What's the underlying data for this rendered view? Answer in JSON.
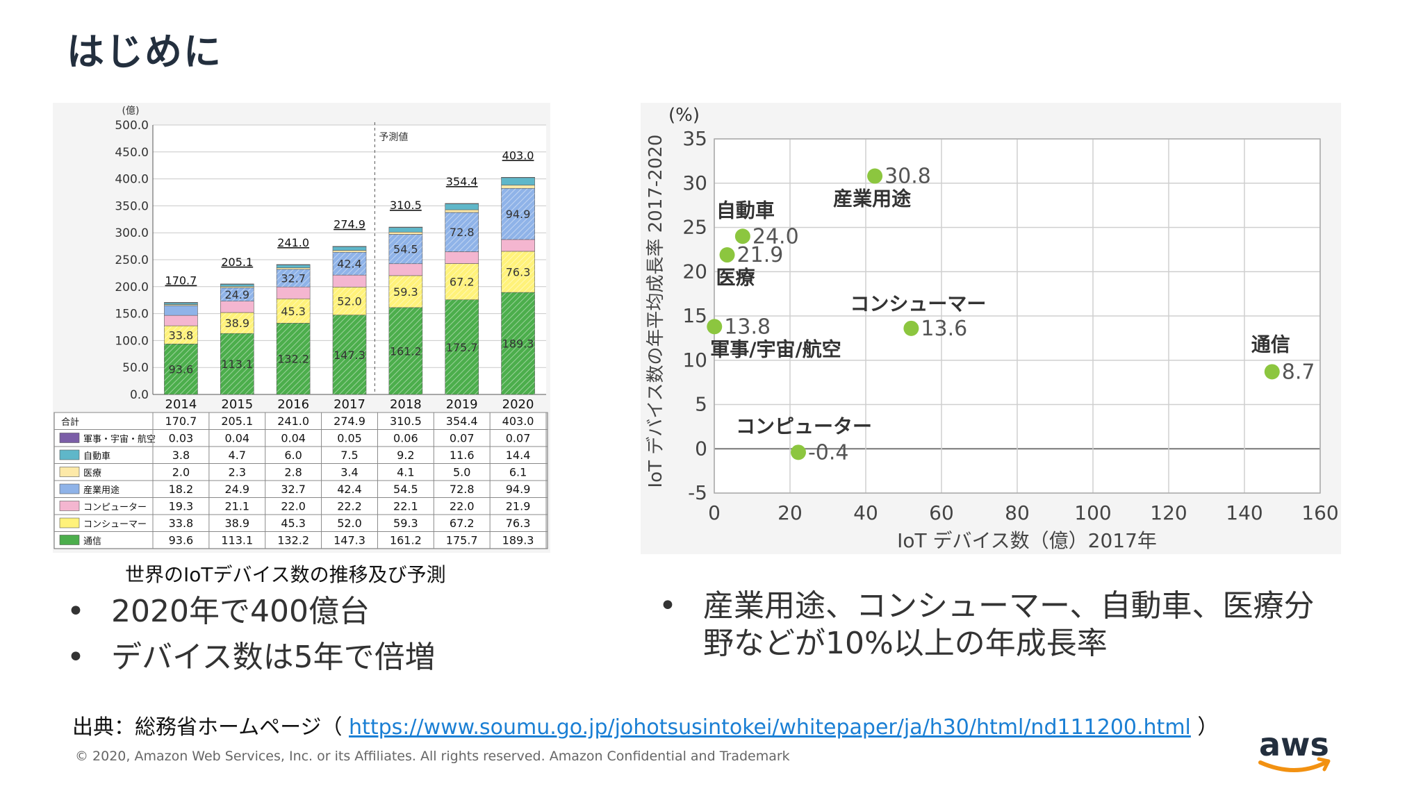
{
  "title": "はじめに",
  "chart_data": [
    {
      "type": "bar",
      "subtype": "stacked",
      "unit_label": "(億)",
      "ylim": [
        0,
        500
      ],
      "yticks": [
        "500.0",
        "450.0",
        "400.0",
        "350.0",
        "300.0",
        "250.0",
        "200.0",
        "150.0",
        "100.0",
        "50.0",
        "0.0"
      ],
      "categories": [
        "2014",
        "2015",
        "2016",
        "2017",
        "2018",
        "2019",
        "2020"
      ],
      "forecast_label": "予測値",
      "totals": [
        170.7,
        205.1,
        241.0,
        274.9,
        310.5,
        354.4,
        403.0
      ],
      "totals_text": [
        "170.7",
        "205.1",
        "241.0",
        "274.9",
        "310.5",
        "354.4",
        "403.0"
      ],
      "total_row_label": "合計",
      "series": [
        {
          "name": "通信",
          "values": [
            93.6,
            113.1,
            132.2,
            147.3,
            161.2,
            175.7,
            189.3
          ],
          "text": [
            "93.6",
            "113.1",
            "132.2",
            "147.3",
            "161.2",
            "175.7",
            "189.3"
          ],
          "color": "#4cae4c"
        },
        {
          "name": "コンシューマー",
          "values": [
            33.8,
            38.9,
            45.3,
            52.0,
            59.3,
            67.2,
            76.3
          ],
          "text": [
            "33.8",
            "38.9",
            "45.3",
            "52.0",
            "59.3",
            "67.2",
            "76.3"
          ],
          "color": "#fff27a"
        },
        {
          "name": "コンピューター",
          "values": [
            19.3,
            21.1,
            22.0,
            22.2,
            22.1,
            22.0,
            21.9
          ],
          "text": [
            "19.3",
            "21.1",
            "22.0",
            "22.2",
            "22.1",
            "22.0",
            "21.9"
          ],
          "color": "#f4b6d0"
        },
        {
          "name": "産業用途",
          "values": [
            18.2,
            24.9,
            32.7,
            42.4,
            54.5,
            72.8,
            94.9
          ],
          "text": [
            "18.2",
            "24.9",
            "32.7",
            "42.4",
            "54.5",
            "72.8",
            "94.9"
          ],
          "color": "#8fb3e8"
        },
        {
          "name": "医療",
          "values": [
            2.0,
            2.3,
            2.8,
            3.4,
            4.1,
            5.0,
            6.1
          ],
          "text": [
            "2.0",
            "2.3",
            "2.8",
            "3.4",
            "4.1",
            "5.0",
            "6.1"
          ],
          "color": "#fde9a8"
        },
        {
          "name": "自動車",
          "values": [
            3.8,
            4.7,
            6.0,
            7.5,
            9.2,
            11.6,
            14.4
          ],
          "text": [
            "3.8",
            "4.7",
            "6.0",
            "7.5",
            "9.2",
            "11.6",
            "14.4"
          ],
          "color": "#5fb7c9"
        },
        {
          "name": "軍事・宇宙・航空",
          "values": [
            0.03,
            0.04,
            0.04,
            0.05,
            0.06,
            0.07,
            0.07
          ],
          "text": [
            "0.03",
            "0.04",
            "0.04",
            "0.05",
            "0.06",
            "0.07",
            "0.07"
          ],
          "color": "#7b5ea7"
        }
      ]
    },
    {
      "type": "scatter",
      "y_unit": "(%)",
      "ylabel": "IoT デバイス数の年平均成長率 2017-2020",
      "xlabel": "IoT デバイス数（億）2017年",
      "xlim": [
        0,
        160
      ],
      "ylim": [
        -5,
        35
      ],
      "xticks": [
        "0",
        "20",
        "40",
        "60",
        "80",
        "100",
        "120",
        "140",
        "160"
      ],
      "yticks": [
        "35",
        "30",
        "25",
        "20",
        "15",
        "10",
        "5",
        "0",
        "-5"
      ],
      "point_color": "#8cc63f",
      "points": [
        {
          "name": "産業用途",
          "x": 42.4,
          "y": 30.8,
          "label": "30.8"
        },
        {
          "name": "自動車",
          "x": 7.5,
          "y": 24.0,
          "label": "24.0"
        },
        {
          "name": "医療",
          "x": 3.4,
          "y": 21.9,
          "label": "21.9"
        },
        {
          "name": "軍事/宇宙/航空",
          "x": 0.05,
          "y": 13.8,
          "label": "13.8"
        },
        {
          "name": "コンシューマー",
          "x": 52.0,
          "y": 13.6,
          "label": "13.6"
        },
        {
          "name": "通信",
          "x": 147.3,
          "y": 8.7,
          "label": "8.7"
        },
        {
          "name": "コンピューター",
          "x": 22.2,
          "y": -0.4,
          "label": "-0.4"
        }
      ]
    }
  ],
  "caption": "世界のIoTデバイス数の推移及び予測",
  "bullets_left": [
    "2020年で400億台",
    "デバイス数は5年で倍増"
  ],
  "bullets_right": [
    "産業用途、コンシューマー、自動車、医療分野などが10%以上の年成長率"
  ],
  "source": {
    "prefix": "出典：総務省ホームページ（ ",
    "url": "https://www.soumu.go.jp/johotsusintokei/whitepaper/ja/h30/html/nd111200.html",
    "suffix": " ）"
  },
  "copyright": "© 2020, Amazon Web Services, Inc. or its Affiliates. All rights reserved. Amazon Confidential and Trademark",
  "logo_text": "aws"
}
